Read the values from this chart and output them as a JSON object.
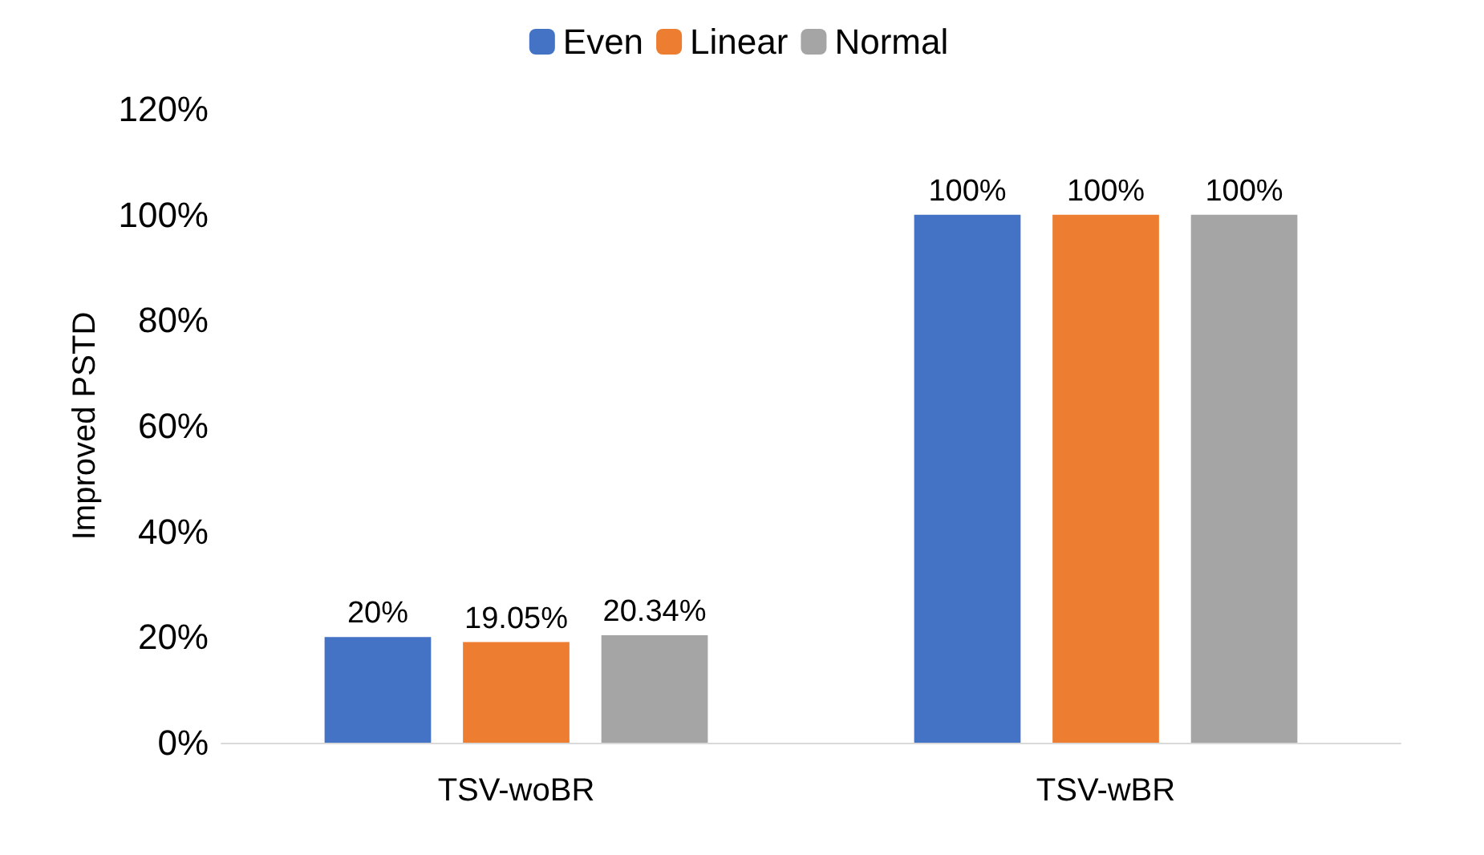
{
  "chart_data": {
    "type": "bar",
    "ylabel": "Improved PSTD",
    "categories": [
      "TSV-woBR",
      "TSV-wBR"
    ],
    "series": [
      {
        "name": "Even",
        "color": "#4472c4",
        "values": [
          20,
          100
        ],
        "value_labels": [
          "20%",
          "100%"
        ]
      },
      {
        "name": "Linear",
        "color": "#ed7d31",
        "values": [
          19.05,
          100
        ],
        "value_labels": [
          "19.05%",
          "100%"
        ]
      },
      {
        "name": "Normal",
        "color": "#a5a5a5",
        "values": [
          20.34,
          100
        ],
        "value_labels": [
          "20.34%",
          "100%"
        ]
      }
    ],
    "ylim": [
      0,
      120
    ],
    "yticks": [
      {
        "value": 0,
        "label": "0%"
      },
      {
        "value": 20,
        "label": "20%"
      },
      {
        "value": 40,
        "label": "40%"
      },
      {
        "value": 60,
        "label": "60%"
      },
      {
        "value": 80,
        "label": "80%"
      },
      {
        "value": 100,
        "label": "100%"
      },
      {
        "value": 120,
        "label": "120%"
      }
    ],
    "grid": false,
    "legend": "top"
  }
}
